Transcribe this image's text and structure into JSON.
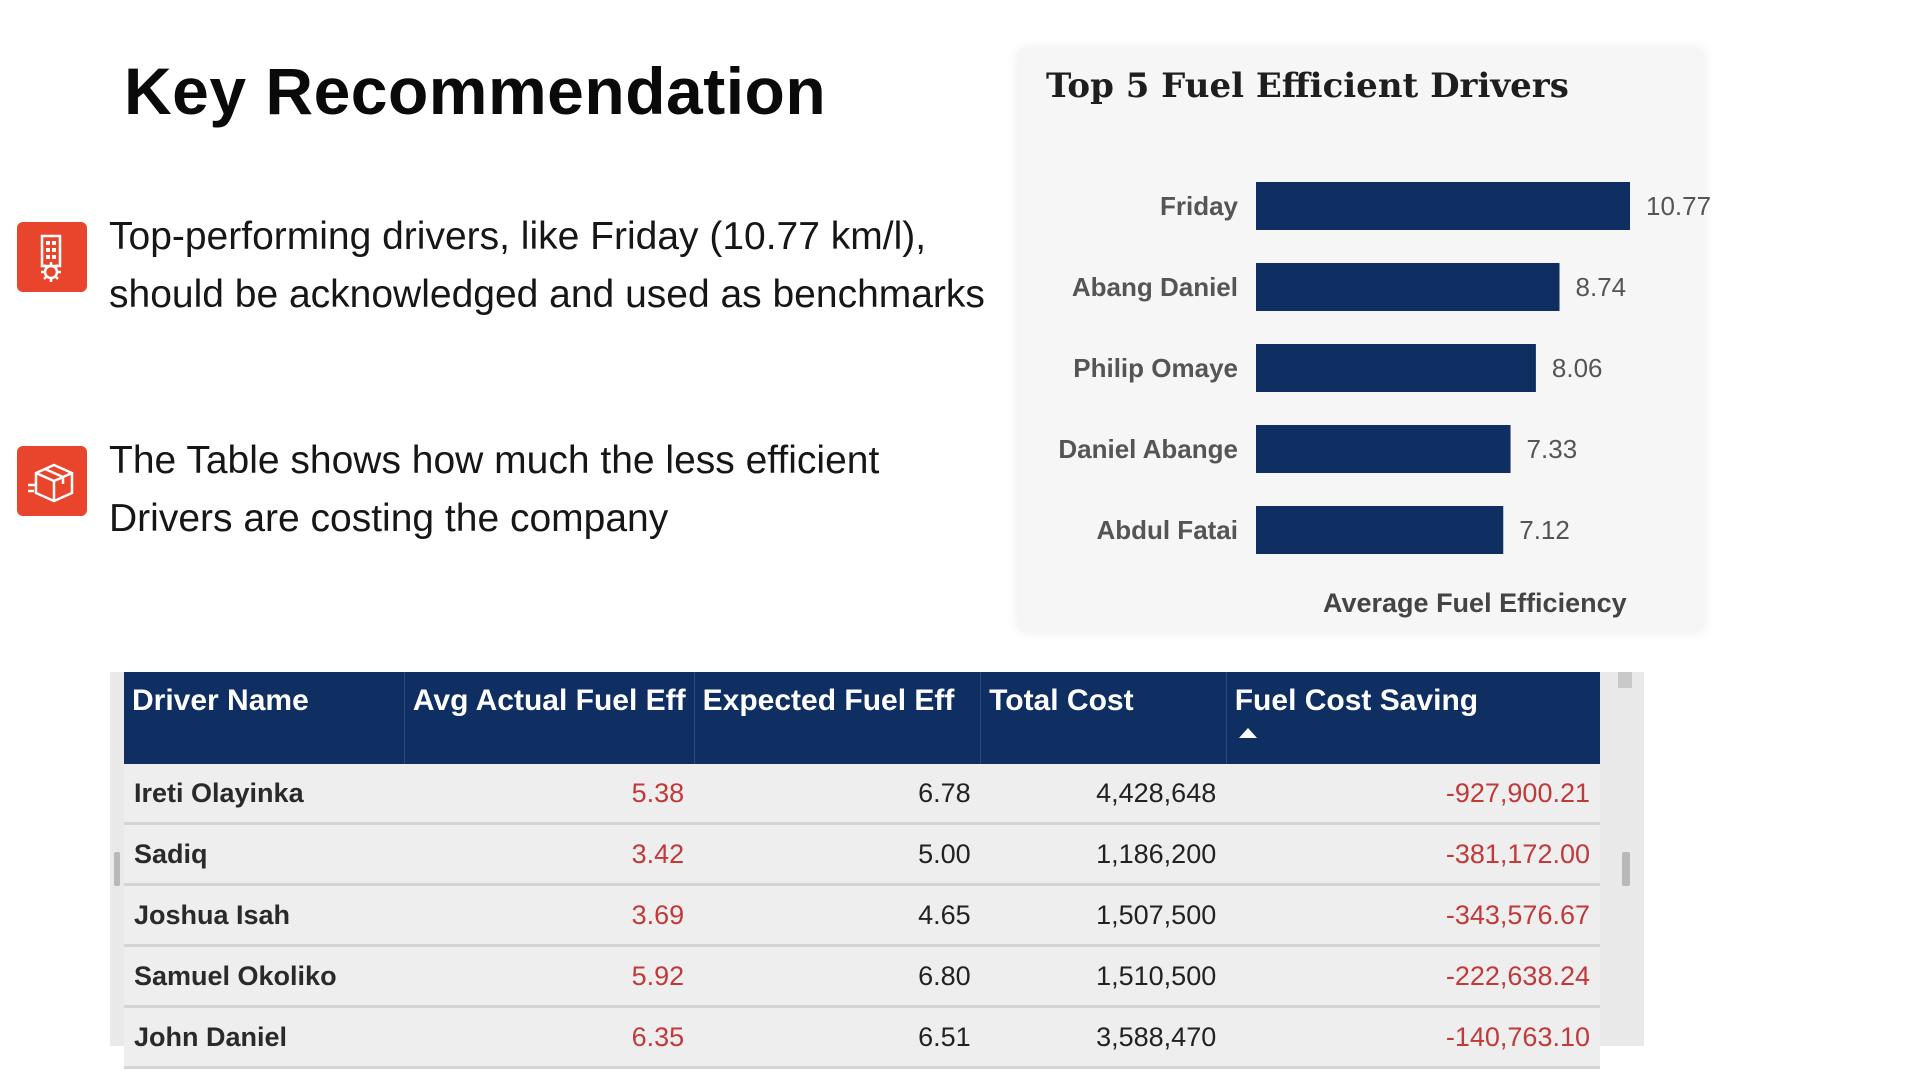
{
  "slide": {
    "title": "Key Recommendation",
    "bullets": [
      {
        "icon": "building-gear-icon",
        "lines": [
          "Top-performing drivers, like Friday (10.77 km/l),",
          "should be acknowledged and used as benchmarks"
        ]
      },
      {
        "icon": "delivery-box-icon",
        "lines": [
          "The Table shows how much the less efficient",
          "Drivers are costing the company"
        ]
      }
    ],
    "accent_color": "#e8452c"
  },
  "chart_data": {
    "type": "bar",
    "orientation": "horizontal",
    "title": "Top 5 Fuel Efficient Drivers",
    "xlabel": "Average Fuel Efficiency",
    "ylabel": "",
    "categories": [
      "Friday",
      "Abang Daniel",
      "Philip Omaye",
      "Daniel Abange",
      "Abdul Fatai"
    ],
    "values": [
      10.77,
      8.74,
      8.06,
      7.33,
      7.12
    ],
    "value_labels": [
      "10.77",
      "8.74",
      "8.06",
      "7.33",
      "7.12"
    ],
    "xlim": [
      0,
      11
    ],
    "bar_color": "#0f2f63",
    "grid": false,
    "legend": "none"
  },
  "table": {
    "columns": [
      "Driver Name",
      "Avg Actual Fuel Eff",
      "Expected Fuel Eff",
      "Total Cost",
      "Fuel Cost Saving"
    ],
    "sorted_column": "Fuel Cost Saving",
    "sort_direction": "ascending",
    "header_color": "#0f2f63",
    "negative_color": "#c03a3a",
    "rows": [
      [
        "Ireti Olayinka",
        "5.38",
        "6.78",
        "4,428,648",
        "-927,900.21"
      ],
      [
        "Sadiq",
        "3.42",
        "5.00",
        "1,186,200",
        "-381,172.00"
      ],
      [
        "Joshua Isah",
        "3.69",
        "4.65",
        "1,507,500",
        "-343,576.67"
      ],
      [
        "Samuel Okoliko",
        "5.92",
        "6.80",
        "1,510,500",
        "-222,638.24"
      ],
      [
        "John Daniel",
        "6.35",
        "6.51",
        "3,588,470",
        "-140,763.10"
      ]
    ]
  }
}
